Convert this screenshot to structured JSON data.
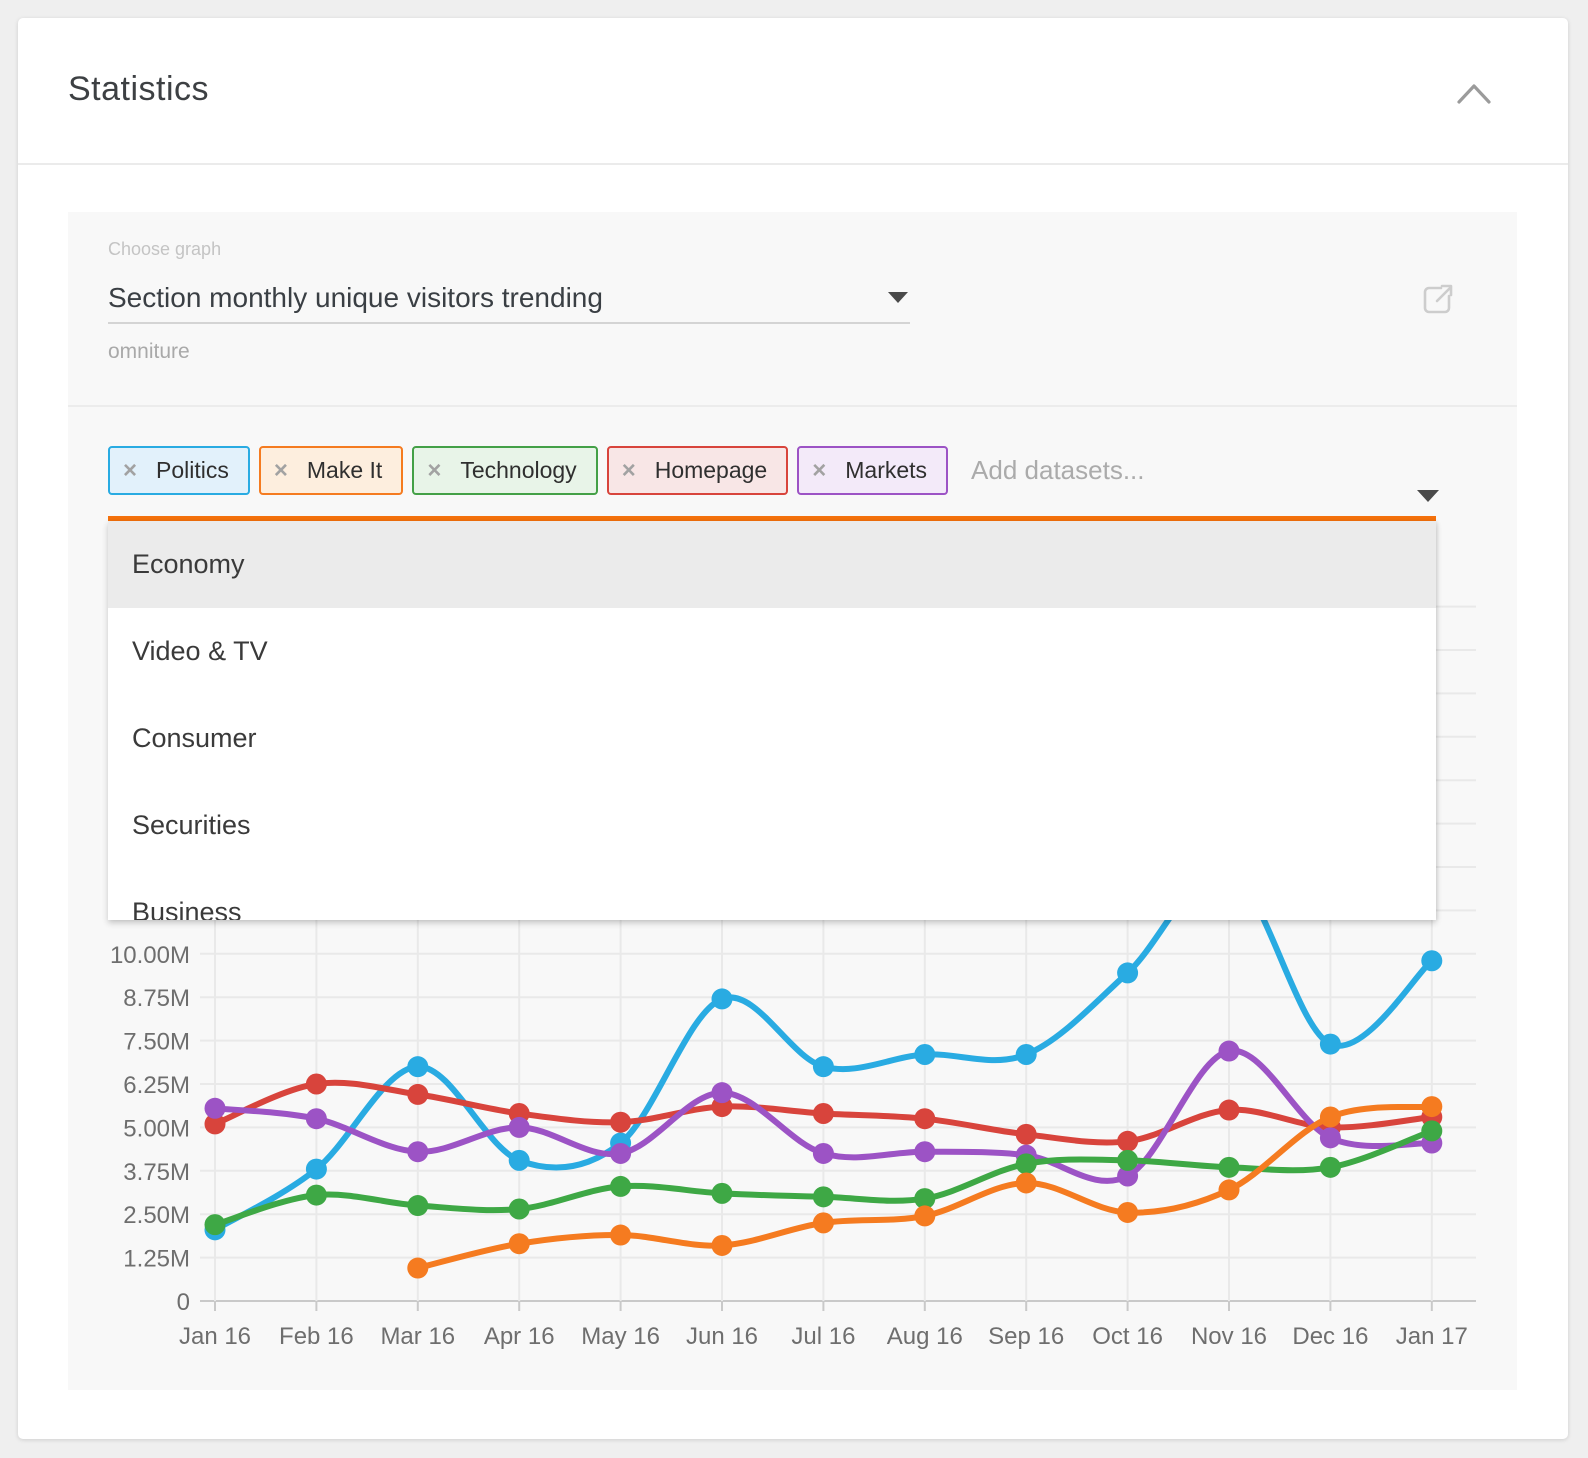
{
  "header": {
    "title": "Statistics"
  },
  "graph_selector": {
    "label": "Choose graph",
    "value": "Section monthly unique visitors trending",
    "source": "omniture"
  },
  "dataset_picker": {
    "placeholder": "Add datasets...",
    "accent_color": "#f4710c",
    "selected_tags": [
      {
        "label": "Politics",
        "border": "#29abe2",
        "bg": "#e2f1fb"
      },
      {
        "label": "Make It",
        "border": "#f57b20",
        "bg": "#fdeede"
      },
      {
        "label": "Technology",
        "border": "#44a047",
        "bg": "#e8f4e8"
      },
      {
        "label": "Homepage",
        "border": "#d8443c",
        "bg": "#f8e6e6"
      },
      {
        "label": "Markets",
        "border": "#9c53c5",
        "bg": "#f3eaf9"
      }
    ],
    "options": [
      "Economy",
      "Video & TV",
      "Consumer",
      "Securities",
      "Business"
    ],
    "highlighted_option": "Economy"
  },
  "chart_data": {
    "type": "line",
    "x": [
      "Jan 16",
      "Feb 16",
      "Mar 16",
      "Apr 16",
      "May 16",
      "Jun 16",
      "Jul 16",
      "Aug 16",
      "Sep 16",
      "Oct 16",
      "Nov 16",
      "Dec 16",
      "Jan 17"
    ],
    "unit": "M",
    "ylim": [
      0,
      20
    ],
    "ytick_step": 1.25,
    "ytick_labels": [
      "0",
      "1.25M",
      "2.50M",
      "3.75M",
      "5.00M",
      "6.25M",
      "7.50M",
      "8.75M",
      "10.00M"
    ],
    "grid": true,
    "legend_position": "none",
    "series": [
      {
        "name": "Politics",
        "color": "#29abe2",
        "values": [
          2.05,
          3.8,
          6.75,
          4.05,
          4.55,
          8.7,
          6.75,
          7.1,
          7.1,
          9.45,
          12.4,
          7.4,
          9.8
        ]
      },
      {
        "name": "Homepage",
        "color": "#d8443c",
        "values": [
          5.1,
          6.25,
          5.95,
          5.4,
          5.15,
          5.6,
          5.4,
          5.25,
          4.8,
          4.6,
          5.5,
          5.0,
          5.3
        ]
      },
      {
        "name": "Markets",
        "color": "#9c53c5",
        "values": [
          5.55,
          5.25,
          4.3,
          5.0,
          4.25,
          6.0,
          4.25,
          4.3,
          4.2,
          3.6,
          7.2,
          4.7,
          4.55
        ]
      },
      {
        "name": "Technology",
        "color": "#3ea845",
        "values": [
          2.2,
          3.05,
          2.75,
          2.65,
          3.3,
          3.1,
          3.0,
          2.95,
          3.95,
          4.05,
          3.85,
          3.85,
          4.9
        ]
      },
      {
        "name": "Make It",
        "color": "#f57b20",
        "values": [
          null,
          null,
          0.95,
          1.65,
          1.9,
          1.6,
          2.25,
          2.45,
          3.4,
          2.55,
          3.2,
          5.3,
          5.6
        ]
      }
    ]
  }
}
